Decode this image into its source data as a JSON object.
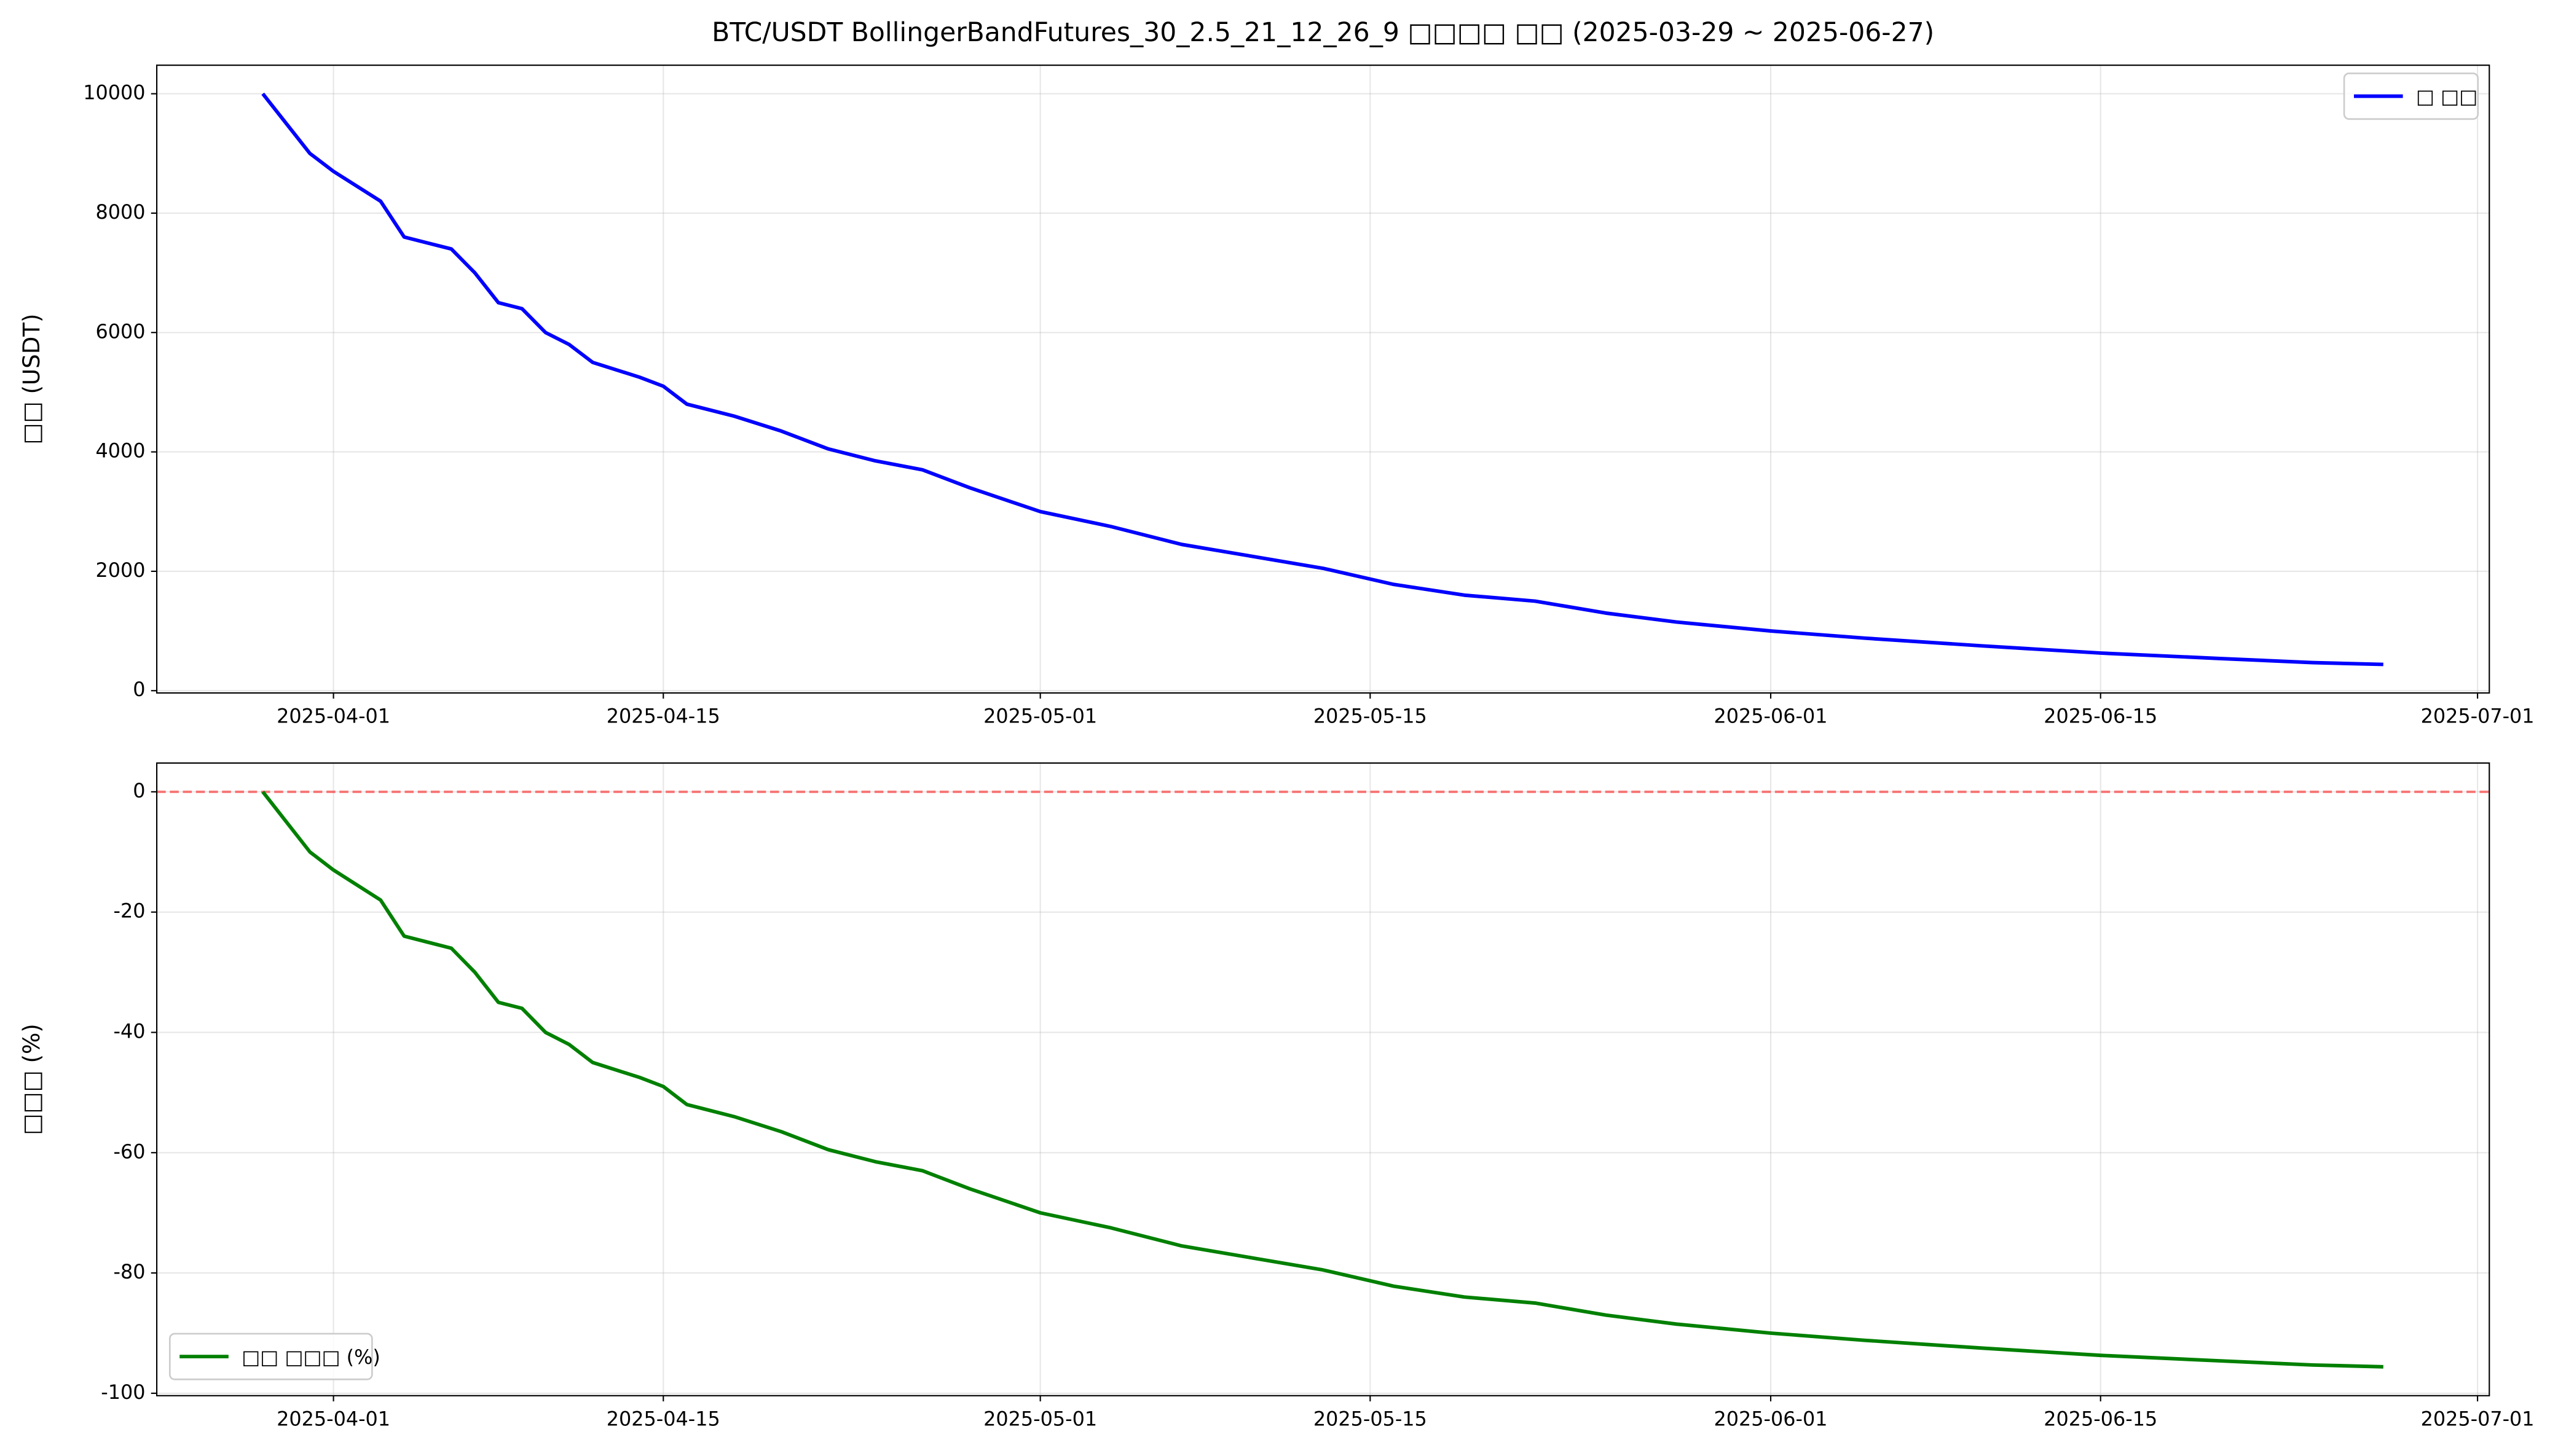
{
  "chart_data": [
    {
      "type": "line",
      "title": "BTC/USDT BollingerBandFutures_30_2.5_21_12_26_9 □□□□ □□ (2025-03-29 ~ 2025-06-27)",
      "y_label": "□□ (USDT)",
      "legend": "upper right",
      "grid": true,
      "x": [
        "2025-03-29",
        "2025-03-30",
        "2025-03-31",
        "2025-04-01",
        "2025-04-03",
        "2025-04-04",
        "2025-04-05",
        "2025-04-06",
        "2025-04-07",
        "2025-04-08",
        "2025-04-09",
        "2025-04-10",
        "2025-04-11",
        "2025-04-12",
        "2025-04-14",
        "2025-04-15",
        "2025-04-16",
        "2025-04-18",
        "2025-04-20",
        "2025-04-22",
        "2025-04-24",
        "2025-04-26",
        "2025-04-28",
        "2025-05-01",
        "2025-05-04",
        "2025-05-07",
        "2025-05-10",
        "2025-05-13",
        "2025-05-16",
        "2025-05-19",
        "2025-05-22",
        "2025-05-25",
        "2025-05-28",
        "2025-06-01",
        "2025-06-05",
        "2025-06-10",
        "2025-06-15",
        "2025-06-20",
        "2025-06-24",
        "2025-06-27"
      ],
      "series": [
        {
          "name": "□ □□",
          "color": "#0000ff",
          "values": [
            10000,
            9500,
            9000,
            8700,
            8200,
            7600,
            7500,
            7400,
            7000,
            6500,
            6400,
            6000,
            5800,
            5500,
            5250,
            5100,
            4800,
            4600,
            4350,
            4050,
            3850,
            3700,
            3400,
            3000,
            2750,
            2450,
            2250,
            2050,
            1780,
            1600,
            1500,
            1300,
            1150,
            1000,
            880,
            750,
            630,
            540,
            470,
            440
          ]
        }
      ],
      "xlim": [
        "2025-03-24T12:00",
        "2025-07-01T12:00"
      ],
      "xticks": [
        "2025-04-01",
        "2025-04-15",
        "2025-05-01",
        "2025-05-15",
        "2025-06-01",
        "2025-06-15",
        "2025-07-01"
      ],
      "ylim": [
        -38,
        10478
      ],
      "yticks": [
        0,
        2000,
        4000,
        6000,
        8000,
        10000
      ]
    },
    {
      "type": "line",
      "y_label": "□□□ (%)",
      "legend": "lower left",
      "grid": true,
      "hline": 0,
      "hline_color": "#ff0000",
      "x": [
        "2025-03-29",
        "2025-03-30",
        "2025-03-31",
        "2025-04-01",
        "2025-04-03",
        "2025-04-04",
        "2025-04-05",
        "2025-04-06",
        "2025-04-07",
        "2025-04-08",
        "2025-04-09",
        "2025-04-10",
        "2025-04-11",
        "2025-04-12",
        "2025-04-14",
        "2025-04-15",
        "2025-04-16",
        "2025-04-18",
        "2025-04-20",
        "2025-04-22",
        "2025-04-24",
        "2025-04-26",
        "2025-04-28",
        "2025-05-01",
        "2025-05-04",
        "2025-05-07",
        "2025-05-10",
        "2025-05-13",
        "2025-05-16",
        "2025-05-19",
        "2025-05-22",
        "2025-05-25",
        "2025-05-28",
        "2025-06-01",
        "2025-06-05",
        "2025-06-10",
        "2025-06-15",
        "2025-06-20",
        "2025-06-24",
        "2025-06-27"
      ],
      "series": [
        {
          "name": "□□ □□□ (%)",
          "color": "#008000",
          "values": [
            0,
            -5,
            -10,
            -13,
            -18,
            -24,
            -25,
            -26,
            -30,
            -35,
            -36,
            -40,
            -42,
            -45,
            -47.5,
            -49,
            -52,
            -54,
            -56.5,
            -59.5,
            -61.5,
            -63,
            -66,
            -70,
            -72.5,
            -75.5,
            -77.5,
            -79.5,
            -82.2,
            -84,
            -85,
            -87,
            -88.5,
            -90,
            -91.2,
            -92.5,
            -93.7,
            -94.6,
            -95.3,
            -95.6
          ]
        }
      ],
      "xlim": [
        "2025-03-24T12:00",
        "2025-07-01T12:00"
      ],
      "xticks": [
        "2025-04-01",
        "2025-04-15",
        "2025-05-01",
        "2025-05-15",
        "2025-06-01",
        "2025-06-15",
        "2025-07-01"
      ],
      "ylim": [
        -100.4,
        4.78
      ],
      "yticks": [
        -100,
        -80,
        -60,
        -40,
        -20,
        0
      ]
    }
  ]
}
